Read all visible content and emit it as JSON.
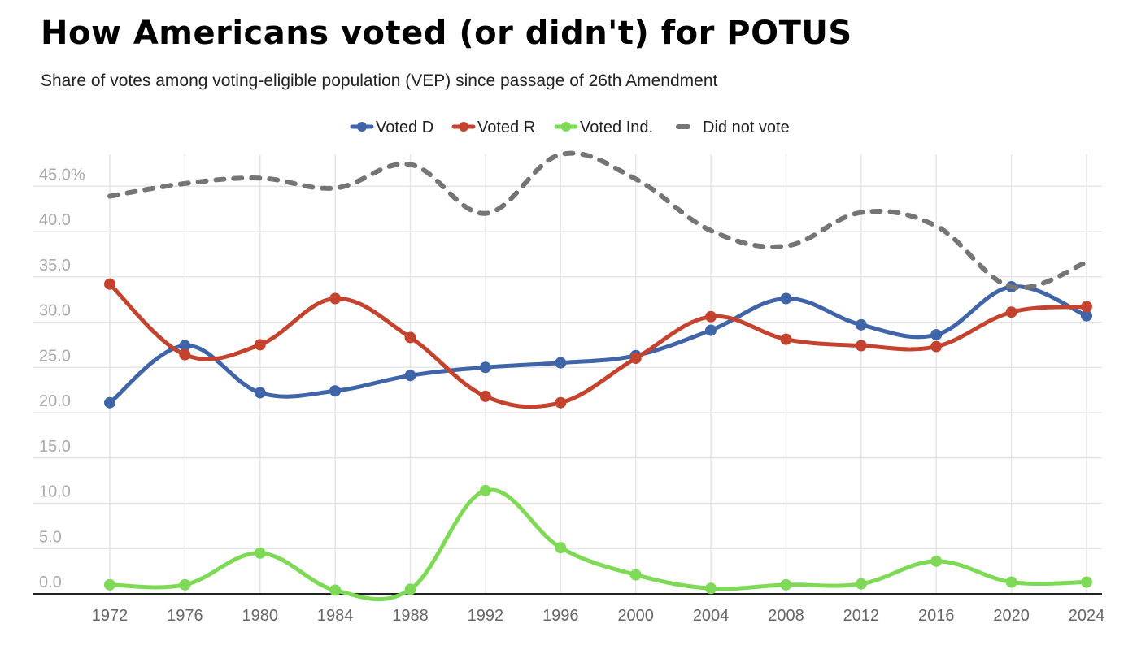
{
  "chart_data": {
    "type": "line",
    "title": "How Americans voted (or didn't) for POTUS",
    "subtitle": "Share of votes among voting-eligible population (VEP) since passage of 26th Amendment",
    "xlabel": "",
    "ylabel": "",
    "ylim": [
      0,
      45
    ],
    "y_ticks": [
      "0.0",
      "5.0",
      "10.0",
      "15.0",
      "20.0",
      "25.0",
      "30.0",
      "35.0",
      "40.0",
      "45.0%"
    ],
    "grid": true,
    "legend_position": "top",
    "categories": [
      "1972",
      "1976",
      "1980",
      "1984",
      "1988",
      "1992",
      "1996",
      "2000",
      "2004",
      "2008",
      "2012",
      "2016",
      "2020",
      "2024"
    ],
    "series": [
      {
        "name": "Voted D",
        "color": "#3f65a8",
        "style": "solid",
        "values": [
          21.1,
          27.4,
          22.2,
          22.4,
          24.1,
          25.0,
          25.5,
          26.3,
          29.1,
          32.6,
          29.7,
          28.6,
          33.9,
          30.7
        ]
      },
      {
        "name": "Voted R",
        "color": "#c4432e",
        "style": "solid",
        "values": [
          34.2,
          26.4,
          27.5,
          32.6,
          28.3,
          21.8,
          21.1,
          26.0,
          30.6,
          28.1,
          27.4,
          27.3,
          31.1,
          31.7
        ]
      },
      {
        "name": "Voted Ind.",
        "color": "#7ed957",
        "style": "solid",
        "values": [
          1.0,
          1.0,
          4.5,
          0.4,
          0.5,
          11.4,
          5.1,
          2.1,
          0.6,
          1.0,
          1.1,
          3.6,
          1.3,
          1.3
        ]
      },
      {
        "name": "Did not vote",
        "color": "#757575",
        "style": "dashed",
        "values": [
          43.9,
          45.3,
          45.9,
          44.8,
          47.4,
          42.0,
          48.5,
          45.8,
          40.1,
          38.4,
          42.1,
          40.6,
          33.9,
          36.6
        ]
      }
    ]
  }
}
